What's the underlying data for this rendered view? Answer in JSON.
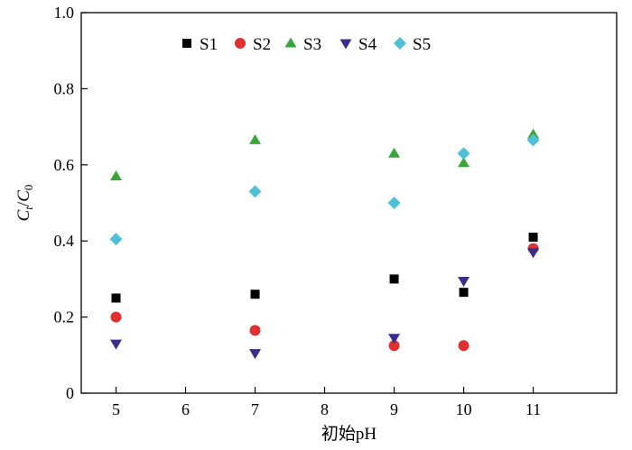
{
  "chart_data": {
    "type": "scatter",
    "xlabel": "初始pH",
    "ylabel": {
      "main": "C",
      "sub1": "t",
      "slash": "/",
      "main2": "C",
      "sub2": "0"
    },
    "xlim": [
      4.5,
      12.2
    ],
    "ylim": [
      0,
      1.0
    ],
    "x_ticks": [
      5,
      6,
      7,
      8,
      9,
      10,
      11
    ],
    "y_ticks": [
      {
        "value": 0,
        "label": "0"
      },
      {
        "value": 0.2,
        "label": "0.2"
      },
      {
        "value": 0.4,
        "label": "0.4"
      },
      {
        "value": 0.6,
        "label": "0.6"
      },
      {
        "value": 0.8,
        "label": "0.8"
      },
      {
        "value": 1.0,
        "label": "1.0"
      }
    ],
    "grid": false,
    "legend_position": "top",
    "series": [
      {
        "name": "S1",
        "marker": "square",
        "color": "#000000",
        "points": [
          [
            5,
            0.25
          ],
          [
            7,
            0.26
          ],
          [
            9,
            0.3
          ],
          [
            10,
            0.265
          ],
          [
            11,
            0.41
          ]
        ]
      },
      {
        "name": "S2",
        "marker": "circle",
        "color": "#e03030",
        "points": [
          [
            5,
            0.2
          ],
          [
            7,
            0.165
          ],
          [
            9,
            0.125
          ],
          [
            10,
            0.125
          ],
          [
            11,
            0.38
          ]
        ]
      },
      {
        "name": "S3",
        "marker": "triangle-up",
        "color": "#3aa63a",
        "points": [
          [
            5,
            0.57
          ],
          [
            7,
            0.665
          ],
          [
            9,
            0.63
          ],
          [
            10,
            0.605
          ],
          [
            11,
            0.68
          ]
        ]
      },
      {
        "name": "S4",
        "marker": "triangle-down",
        "color": "#3a2d8c",
        "points": [
          [
            5,
            0.13
          ],
          [
            7,
            0.105
          ],
          [
            9,
            0.145
          ],
          [
            10,
            0.295
          ],
          [
            11,
            0.37
          ]
        ]
      },
      {
        "name": "S5",
        "marker": "diamond",
        "color": "#4fc0d8",
        "points": [
          [
            5,
            0.405
          ],
          [
            7,
            0.53
          ],
          [
            9,
            0.5
          ],
          [
            10,
            0.63
          ],
          [
            11,
            0.665
          ]
        ]
      }
    ]
  }
}
